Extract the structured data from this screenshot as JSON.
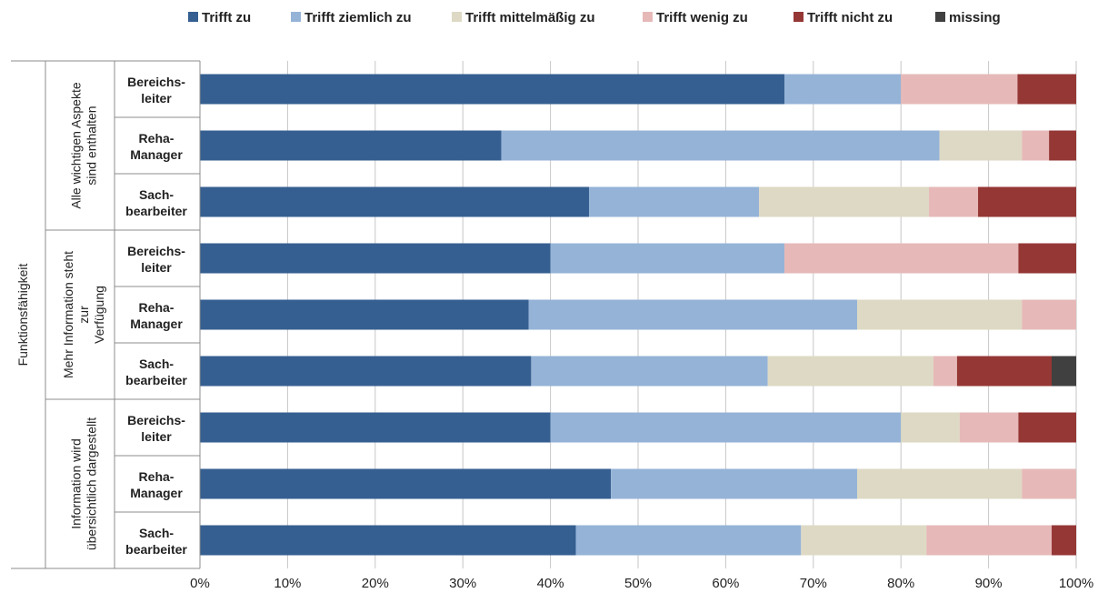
{
  "chart_data": {
    "type": "bar",
    "orientation": "horizontal",
    "stacked": "percent",
    "outer_label": "Funktionsfähigkeit",
    "groups": [
      {
        "label": [
          "Alle wichtigen Aspekte",
          "sind enthalten"
        ],
        "categories": [
          [
            "Bereichs-",
            "leiter"
          ],
          [
            "Reha-",
            "Manager"
          ],
          [
            "Sach-",
            "bearbeiter"
          ]
        ]
      },
      {
        "label": [
          "Mehr Information steht",
          "zur",
          "Verfügung"
        ],
        "categories": [
          [
            "Bereichs-",
            "leiter"
          ],
          [
            "Reha-",
            "Manager"
          ],
          [
            "Sach-",
            "bearbeiter"
          ]
        ]
      },
      {
        "label": [
          "Information wird",
          "übersichtlich dargestellt"
        ],
        "categories": [
          [
            "Bereichs-",
            "leiter"
          ],
          [
            "Reha-",
            "Manager"
          ],
          [
            "Sach-",
            "bearbeiter"
          ]
        ]
      }
    ],
    "series": [
      {
        "name": "Trifft zu",
        "color": "#365f91",
        "values": [
          66.7,
          34.4,
          44.4,
          40.0,
          37.5,
          37.8,
          40.0,
          46.9,
          42.9
        ]
      },
      {
        "name": "Trifft ziemlich zu",
        "color": "#95b3d7",
        "values": [
          13.3,
          50.0,
          19.4,
          26.7,
          37.5,
          27.0,
          40.0,
          28.1,
          25.7
        ]
      },
      {
        "name": "Trifft mittelmäßig zu",
        "color": "#ddd9c4",
        "values": [
          0,
          9.4,
          19.4,
          0,
          18.8,
          18.9,
          6.7,
          18.8,
          14.3
        ]
      },
      {
        "name": "Trifft wenig zu",
        "color": "#e6b9b8",
        "values": [
          13.3,
          3.1,
          5.6,
          26.7,
          6.2,
          2.7,
          6.7,
          6.2,
          14.3
        ]
      },
      {
        "name": "Trifft nicht zu",
        "color": "#953735",
        "values": [
          6.7,
          3.1,
          11.2,
          6.6,
          0,
          10.8,
          6.6,
          0,
          2.8
        ]
      },
      {
        "name": "missing",
        "color": "#404040",
        "values": [
          0,
          0,
          0,
          0,
          0,
          2.8,
          0,
          0,
          0
        ]
      }
    ],
    "xlim": [
      0,
      100
    ],
    "xticks": [
      "0%",
      "10%",
      "20%",
      "30%",
      "40%",
      "50%",
      "60%",
      "70%",
      "80%",
      "90%",
      "100%"
    ],
    "grid": true,
    "legend_position": "top"
  }
}
